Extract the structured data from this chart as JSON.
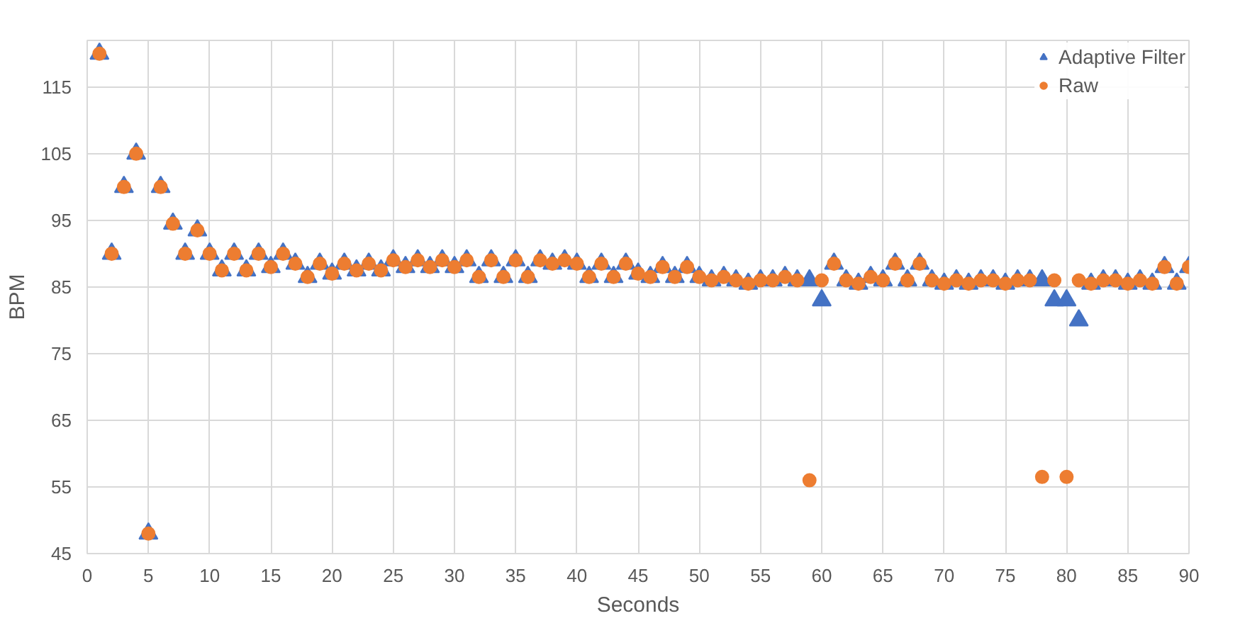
{
  "chart_data": {
    "type": "scatter",
    "xlabel": "Seconds",
    "ylabel": "BPM",
    "x": [
      1,
      2,
      3,
      4,
      5,
      6,
      7,
      8,
      9,
      10,
      11,
      12,
      13,
      14,
      15,
      16,
      17,
      18,
      19,
      20,
      21,
      22,
      23,
      24,
      25,
      26,
      27,
      28,
      29,
      30,
      31,
      32,
      33,
      34,
      35,
      36,
      37,
      38,
      39,
      40,
      41,
      42,
      43,
      44,
      45,
      46,
      47,
      48,
      49,
      50,
      51,
      52,
      53,
      54,
      55,
      56,
      57,
      58,
      59,
      60,
      61,
      62,
      63,
      64,
      65,
      66,
      67,
      68,
      69,
      70,
      71,
      72,
      73,
      74,
      75,
      76,
      77,
      78,
      79,
      80,
      81,
      82,
      83,
      84,
      85,
      86,
      87,
      88,
      89,
      90
    ],
    "series": [
      {
        "name": "Adaptive Filter",
        "color": "#4472c4",
        "marker": "triangle",
        "values": [
          120,
          90,
          100,
          105,
          48,
          100,
          94.5,
          90,
          93.5,
          90,
          87.5,
          90,
          87.5,
          90,
          88,
          90,
          88.5,
          86.5,
          88.5,
          87,
          88.5,
          87.5,
          88.5,
          87.5,
          89,
          88,
          89,
          88,
          89,
          88,
          89,
          86.5,
          89,
          86.5,
          89,
          86.5,
          89,
          88.5,
          89,
          88.5,
          86.5,
          88.5,
          86.5,
          88.5,
          87,
          86.5,
          88,
          86.5,
          88,
          86.5,
          86,
          86.5,
          86,
          85.5,
          86,
          86,
          86.5,
          86,
          86,
          83,
          88.5,
          86,
          85.5,
          86.5,
          86,
          88.5,
          86,
          88.5,
          86,
          85.5,
          86,
          85.5,
          86,
          86,
          85.5,
          86,
          86,
          86,
          83,
          83,
          80,
          85.5,
          86,
          86,
          85.5,
          86,
          85.5,
          88,
          85.5,
          88
        ]
      },
      {
        "name": "Raw",
        "color": "#ed7d31",
        "marker": "circle",
        "values": [
          120,
          90,
          100,
          105,
          48,
          100,
          94.5,
          90,
          93.5,
          90,
          87.5,
          90,
          87.5,
          90,
          88,
          90,
          88.5,
          86.5,
          88.5,
          87,
          88.5,
          87.5,
          88.5,
          87.5,
          89,
          88,
          89,
          88,
          89,
          88,
          89,
          86.5,
          89,
          86.5,
          89,
          86.5,
          89,
          88.5,
          89,
          88.5,
          86.5,
          88.5,
          86.5,
          88.5,
          87,
          86.5,
          88,
          86.5,
          88,
          86.5,
          86,
          86.5,
          86,
          85.5,
          86,
          86,
          86.5,
          86,
          56,
          86,
          88.5,
          86,
          85.5,
          86.5,
          86,
          88.5,
          86,
          88.5,
          86,
          85.5,
          86,
          85.5,
          86,
          86,
          85.5,
          86,
          86,
          56.5,
          86,
          56.5,
          86,
          85.5,
          86,
          86,
          85.5,
          86,
          85.5,
          88,
          85.5,
          88
        ]
      }
    ],
    "xlim": [
      0,
      90
    ],
    "xticks": [
      0,
      5,
      10,
      15,
      20,
      25,
      30,
      35,
      40,
      45,
      50,
      55,
      60,
      65,
      70,
      75,
      80,
      85,
      90
    ],
    "ylim": [
      45,
      122
    ],
    "yticks": [
      45,
      55,
      65,
      75,
      85,
      95,
      105,
      115
    ],
    "grid": true,
    "legend": "top right"
  }
}
